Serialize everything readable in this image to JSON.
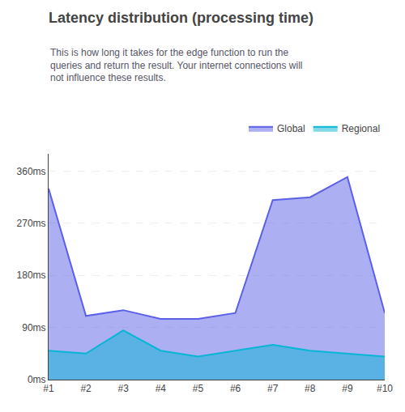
{
  "chart_data": {
    "type": "area",
    "title": "Latency distribution (processing time)",
    "subtitle": "This is how long it takes for the edge function to run the queries and return the result. Your internet connections will not influence these results.",
    "categories": [
      "#1",
      "#2",
      "#3",
      "#4",
      "#5",
      "#6",
      "#7",
      "#8",
      "#9",
      "#10"
    ],
    "series": [
      {
        "name": "Global",
        "color": "#5b60e8",
        "values": [
          330,
          110,
          120,
          105,
          105,
          115,
          310,
          315,
          350,
          115
        ]
      },
      {
        "name": "Regional",
        "color": "#06b6d4",
        "values": [
          50,
          45,
          85,
          50,
          40,
          50,
          60,
          50,
          45,
          40
        ]
      }
    ],
    "ylim": [
      0,
      390
    ],
    "yticks": [
      {
        "value": 0,
        "label": "0ms"
      },
      {
        "value": 90,
        "label": "90ms"
      },
      {
        "value": 180,
        "label": "180ms"
      },
      {
        "value": 270,
        "label": "270ms"
      },
      {
        "value": 360,
        "label": "360ms"
      }
    ],
    "grid": true,
    "legend": "top right"
  }
}
